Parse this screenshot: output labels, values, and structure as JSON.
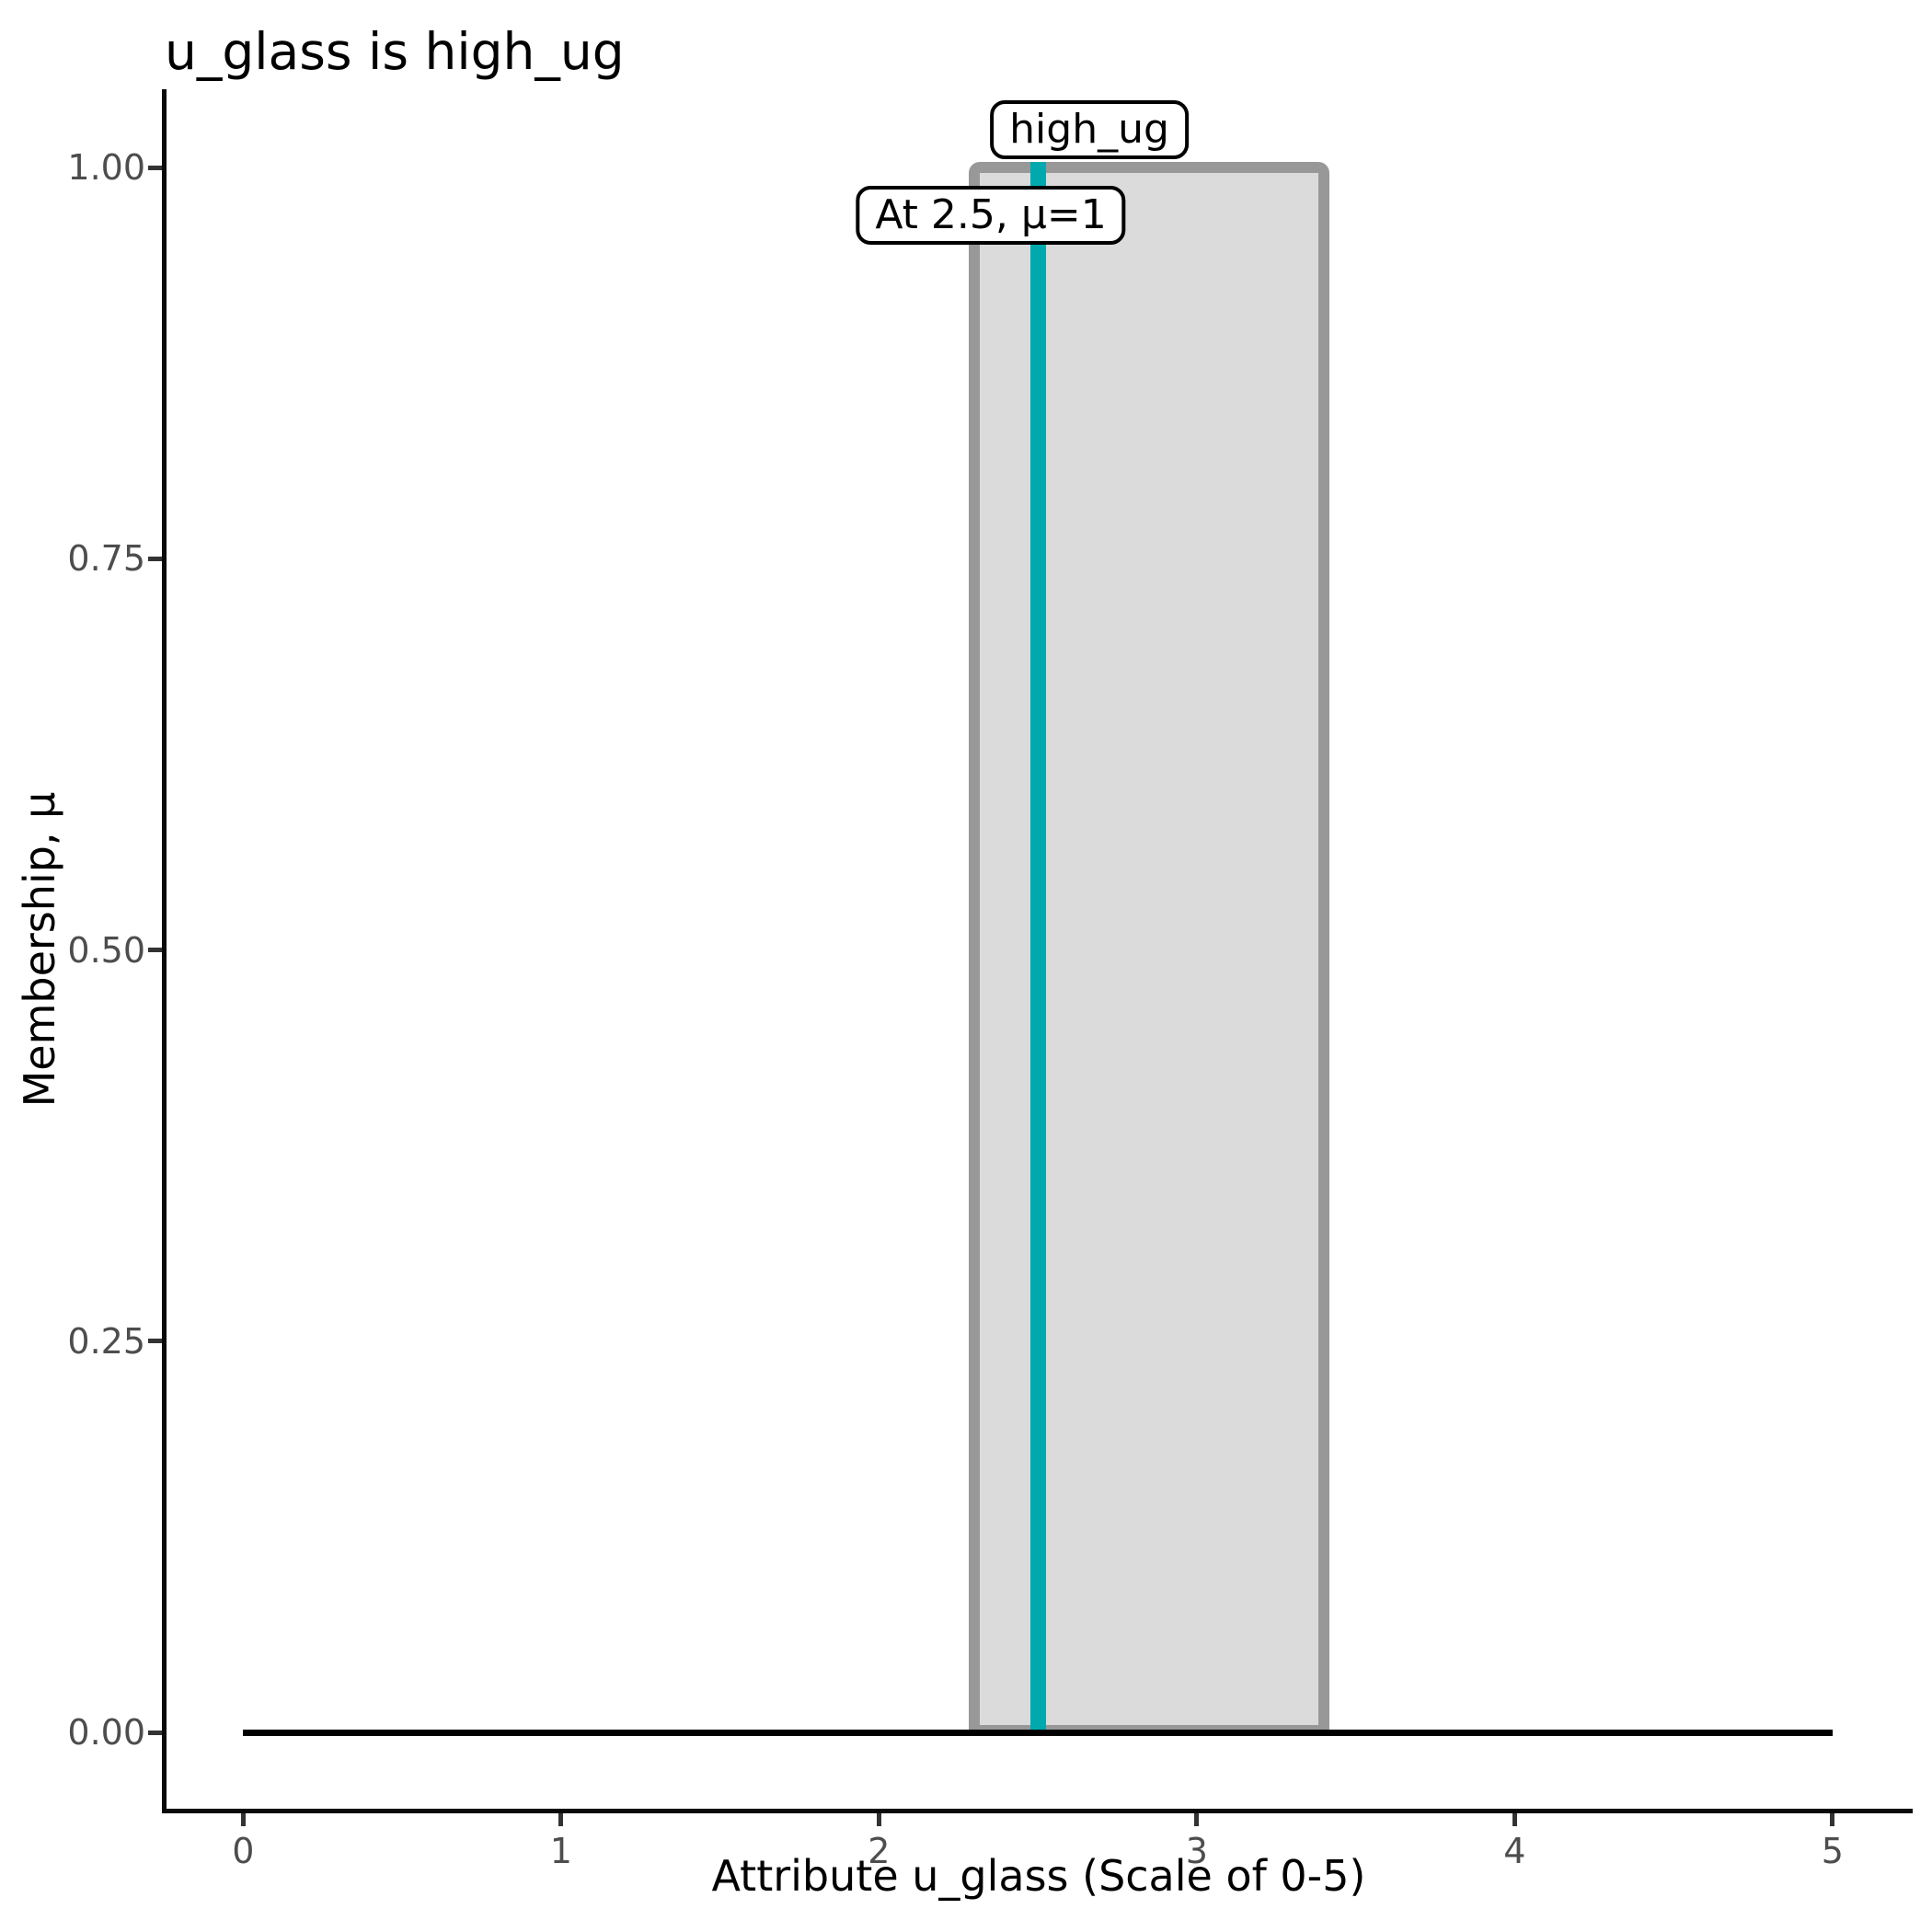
{
  "chart_data": {
    "type": "area",
    "title": "u_glass is high_ug",
    "xlabel": "Attribute u_glass (Scale of 0-5)",
    "ylabel": "Membership, μ",
    "xlim": [
      0,
      5
    ],
    "ylim": [
      0,
      1
    ],
    "grid": false,
    "legend": false,
    "x_ticks": [
      {
        "v": 0,
        "label": "0"
      },
      {
        "v": 1,
        "label": "1"
      },
      {
        "v": 2,
        "label": "2"
      },
      {
        "v": 3,
        "label": "3"
      },
      {
        "v": 4,
        "label": "4"
      },
      {
        "v": 5,
        "label": "5"
      }
    ],
    "y_ticks": [
      {
        "v": 0.0,
        "label": "0.00"
      },
      {
        "v": 0.25,
        "label": "0.25"
      },
      {
        "v": 0.5,
        "label": "0.50"
      },
      {
        "v": 0.75,
        "label": "0.75"
      },
      {
        "v": 1.0,
        "label": "1.00"
      }
    ],
    "membership_function": {
      "name": "high_ug",
      "shape": "rectangular",
      "support": [
        2.3,
        3.4
      ],
      "height": 1,
      "points": [
        [
          0,
          0
        ],
        [
          2.3,
          0
        ],
        [
          2.3,
          1
        ],
        [
          3.4,
          1
        ],
        [
          3.4,
          0
        ],
        [
          5,
          0
        ]
      ],
      "fill_color": "#DBDBDB",
      "border_color": "#989898"
    },
    "baseline": {
      "from_x": 0,
      "to_x": 5,
      "mu": 0,
      "color": "#000000"
    },
    "input_marker": {
      "x": 2.5,
      "mu": 1,
      "color": "#00A9AE"
    },
    "annotations": [
      {
        "id": "set-name",
        "text": "high_ug",
        "x": 2.5,
        "mu": 1
      },
      {
        "id": "membership-readout",
        "text": "At 2.5, μ=1",
        "x": 2.5,
        "mu": 1
      }
    ],
    "colors": {
      "background": "#FFFFFF",
      "axis_line": "#0A0A0A",
      "tick_mark": "#333333",
      "tick_label": "#4D4D4D",
      "fill": "#DBDBDB",
      "border": "#989898",
      "marker": "#00A9AE",
      "annotation_border": "#000000",
      "annotation_fill": "#FFFFFF"
    }
  }
}
